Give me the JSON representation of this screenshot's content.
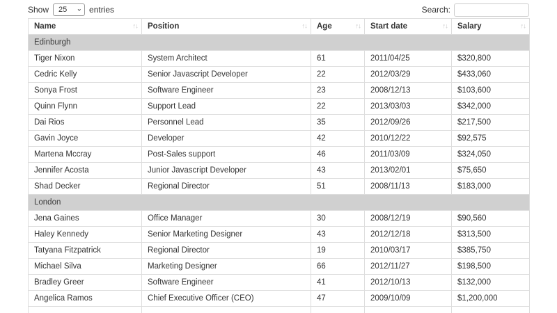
{
  "controls": {
    "show_label": "Show",
    "entries_label": "entries",
    "page_length": "25",
    "search_label": "Search:",
    "search_value": ""
  },
  "icons": {
    "sort_both": "↑↓",
    "select_chevron": "⌄"
  },
  "colors": {
    "group_row_bg": "#d0d0d0",
    "table_border": "#dddddd",
    "text": "#333333",
    "sort_icon": "#c8c8c8",
    "input_border": "#cccccc",
    "select_border": "#999999",
    "page_bg": "#ffffff"
  },
  "table": {
    "columns": [
      {
        "key": "name",
        "label": "Name"
      },
      {
        "key": "position",
        "label": "Position"
      },
      {
        "key": "age",
        "label": "Age"
      },
      {
        "key": "start-date",
        "label": "Start date"
      },
      {
        "key": "salary",
        "label": "Salary"
      }
    ],
    "groups": [
      {
        "name": "Edinburgh",
        "rows": [
          [
            "Tiger Nixon",
            "System Architect",
            "61",
            "2011/04/25",
            "$320,800"
          ],
          [
            "Cedric Kelly",
            "Senior Javascript Developer",
            "22",
            "2012/03/29",
            "$433,060"
          ],
          [
            "Sonya Frost",
            "Software Engineer",
            "23",
            "2008/12/13",
            "$103,600"
          ],
          [
            "Quinn Flynn",
            "Support Lead",
            "22",
            "2013/03/03",
            "$342,000"
          ],
          [
            "Dai Rios",
            "Personnel Lead",
            "35",
            "2012/09/26",
            "$217,500"
          ],
          [
            "Gavin Joyce",
            "Developer",
            "42",
            "2010/12/22",
            "$92,575"
          ],
          [
            "Martena Mccray",
            "Post-Sales support",
            "46",
            "2011/03/09",
            "$324,050"
          ],
          [
            "Jennifer Acosta",
            "Junior Javascript Developer",
            "43",
            "2013/02/01",
            "$75,650"
          ],
          [
            "Shad Decker",
            "Regional Director",
            "51",
            "2008/11/13",
            "$183,000"
          ]
        ]
      },
      {
        "name": "London",
        "rows": [
          [
            "Jena Gaines",
            "Office Manager",
            "30",
            "2008/12/19",
            "$90,560"
          ],
          [
            "Haley Kennedy",
            "Senior Marketing Designer",
            "43",
            "2012/12/18",
            "$313,500"
          ],
          [
            "Tatyana Fitzpatrick",
            "Regional Director",
            "19",
            "2010/03/17",
            "$385,750"
          ],
          [
            "Michael Silva",
            "Marketing Designer",
            "66",
            "2012/11/27",
            "$198,500"
          ],
          [
            "Bradley Greer",
            "Software Engineer",
            "41",
            "2012/10/13",
            "$132,000"
          ],
          [
            "Angelica Ramos",
            "Chief Executive Officer (CEO)",
            "47",
            "2009/10/09",
            "$1,200,000"
          ]
        ]
      }
    ],
    "partial_row_visible": true
  }
}
